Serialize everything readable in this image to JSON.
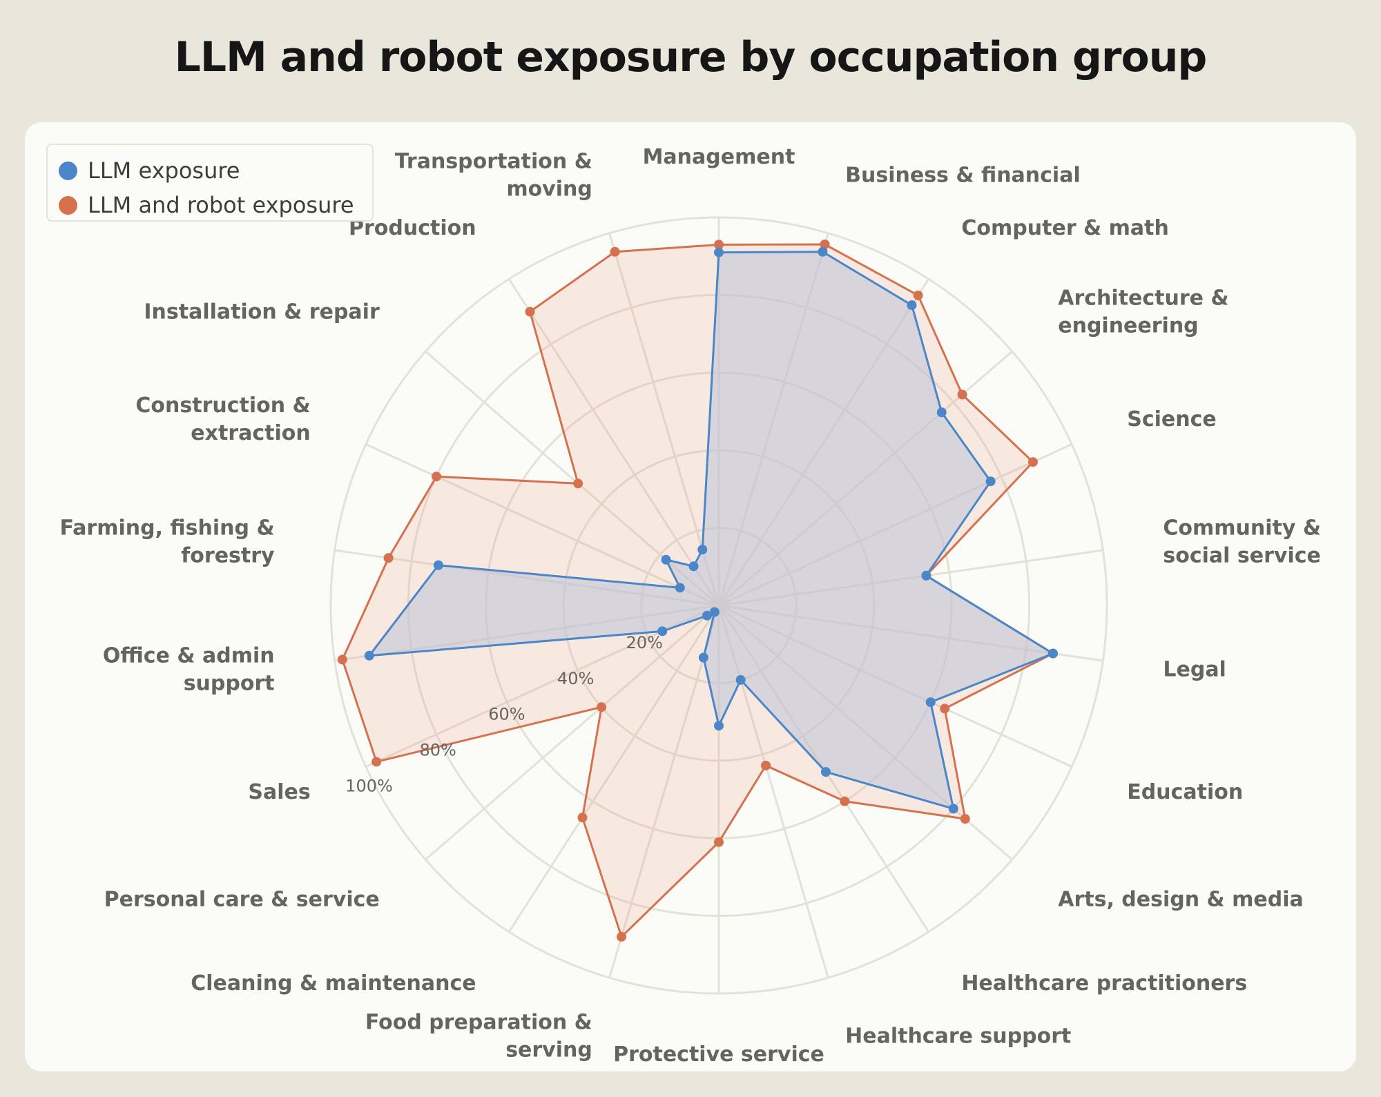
{
  "title": "LLM and robot exposure by occupation group",
  "legend": [
    {
      "label": "LLM exposure",
      "color": "#4a86c8"
    },
    {
      "label": "LLM and robot exposure",
      "color": "#d5714f"
    }
  ],
  "chart_data": {
    "type": "radar",
    "radial_range": [
      0,
      100
    ],
    "tick_labels": [
      "20%",
      "40%",
      "60%",
      "80%",
      "100%"
    ],
    "tick_values": [
      20,
      40,
      60,
      80,
      100
    ],
    "grid": true,
    "legend_position": "top-left",
    "categories": [
      [
        "Management"
      ],
      [
        "Business & financial"
      ],
      [
        "Computer & math"
      ],
      [
        "Architecture &",
        "engineering"
      ],
      [
        "Science"
      ],
      [
        "Community &",
        "social service"
      ],
      [
        "Legal"
      ],
      [
        "Education"
      ],
      [
        "Arts, design & media"
      ],
      [
        "Healthcare practitioners"
      ],
      [
        "Healthcare support"
      ],
      [
        "Protective service"
      ],
      [
        "Food preparation &",
        "serving"
      ],
      [
        "Cleaning & maintenance"
      ],
      [
        "Personal care & service"
      ],
      [
        "Sales"
      ],
      [
        "Office & admin",
        "support"
      ],
      [
        "Farming, fishing &",
        "forestry"
      ],
      [
        "Construction &",
        "extraction"
      ],
      [
        "Installation & repair"
      ],
      [
        "Production"
      ],
      [
        "Transportation &",
        "moving"
      ]
    ],
    "series": [
      {
        "name": "LLM exposure",
        "color": "#4a86c8",
        "values": [
          91,
          95,
          92,
          76,
          77,
          54,
          87,
          60,
          80,
          51,
          20,
          31,
          14,
          2,
          4,
          16,
          91,
          73,
          11,
          18,
          12,
          15
        ]
      },
      {
        "name": "LLM and robot exposure",
        "color": "#d5714f",
        "values": [
          93,
          97,
          95,
          83,
          89,
          54,
          87,
          64,
          84,
          60,
          43,
          61,
          89,
          65,
          40,
          97,
          98,
          86,
          80,
          48,
          90,
          95
        ]
      }
    ]
  }
}
